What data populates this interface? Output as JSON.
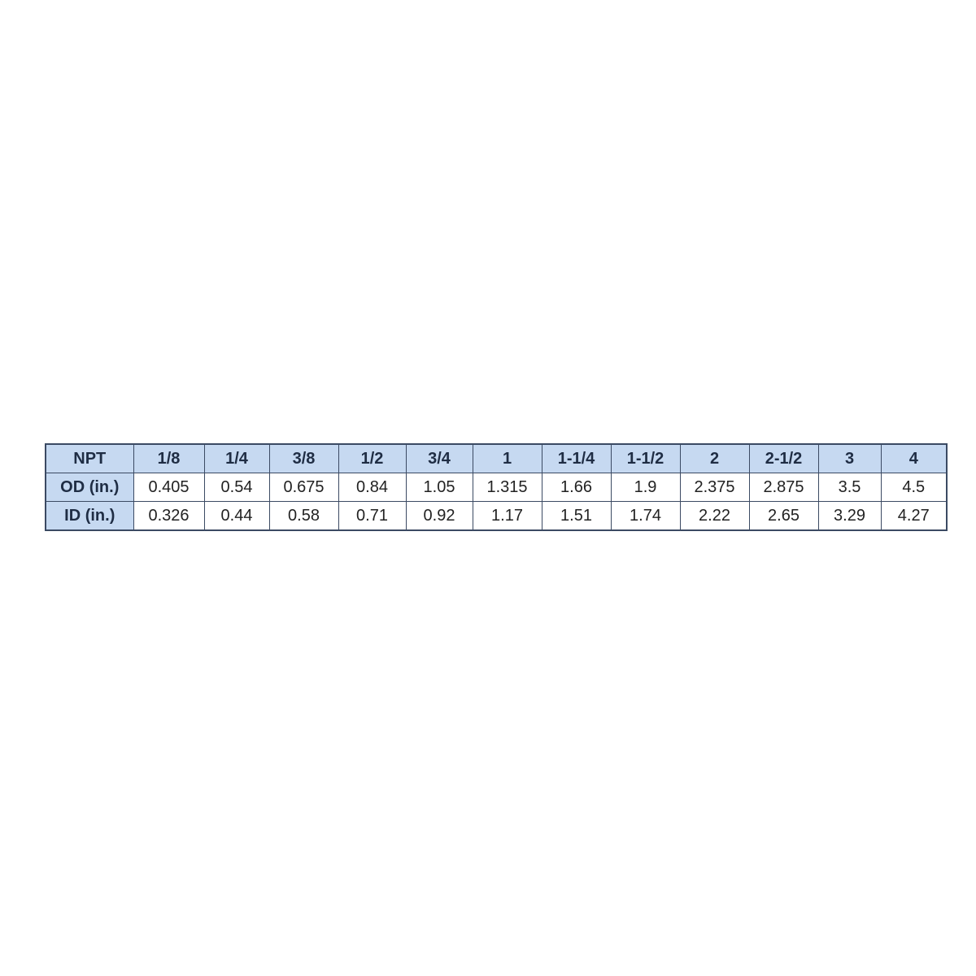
{
  "table": {
    "header": [
      "NPT",
      "1/8",
      "1/4",
      "3/8",
      "1/2",
      "3/4",
      "1",
      "1-1/4",
      "1-1/2",
      "2",
      "2-1/2",
      "3",
      "4"
    ],
    "rows": [
      [
        "OD (in.)",
        "0.405",
        "0.54",
        "0.675",
        "0.84",
        "1.05",
        "1.315",
        "1.66",
        "1.9",
        "2.375",
        "2.875",
        "3.5",
        "4.5"
      ],
      [
        "ID (in.)",
        "0.326",
        "0.44",
        "0.58",
        "0.71",
        "0.92",
        "1.17",
        "1.51",
        "1.74",
        "2.22",
        "2.65",
        "3.29",
        "4.27"
      ]
    ]
  }
}
